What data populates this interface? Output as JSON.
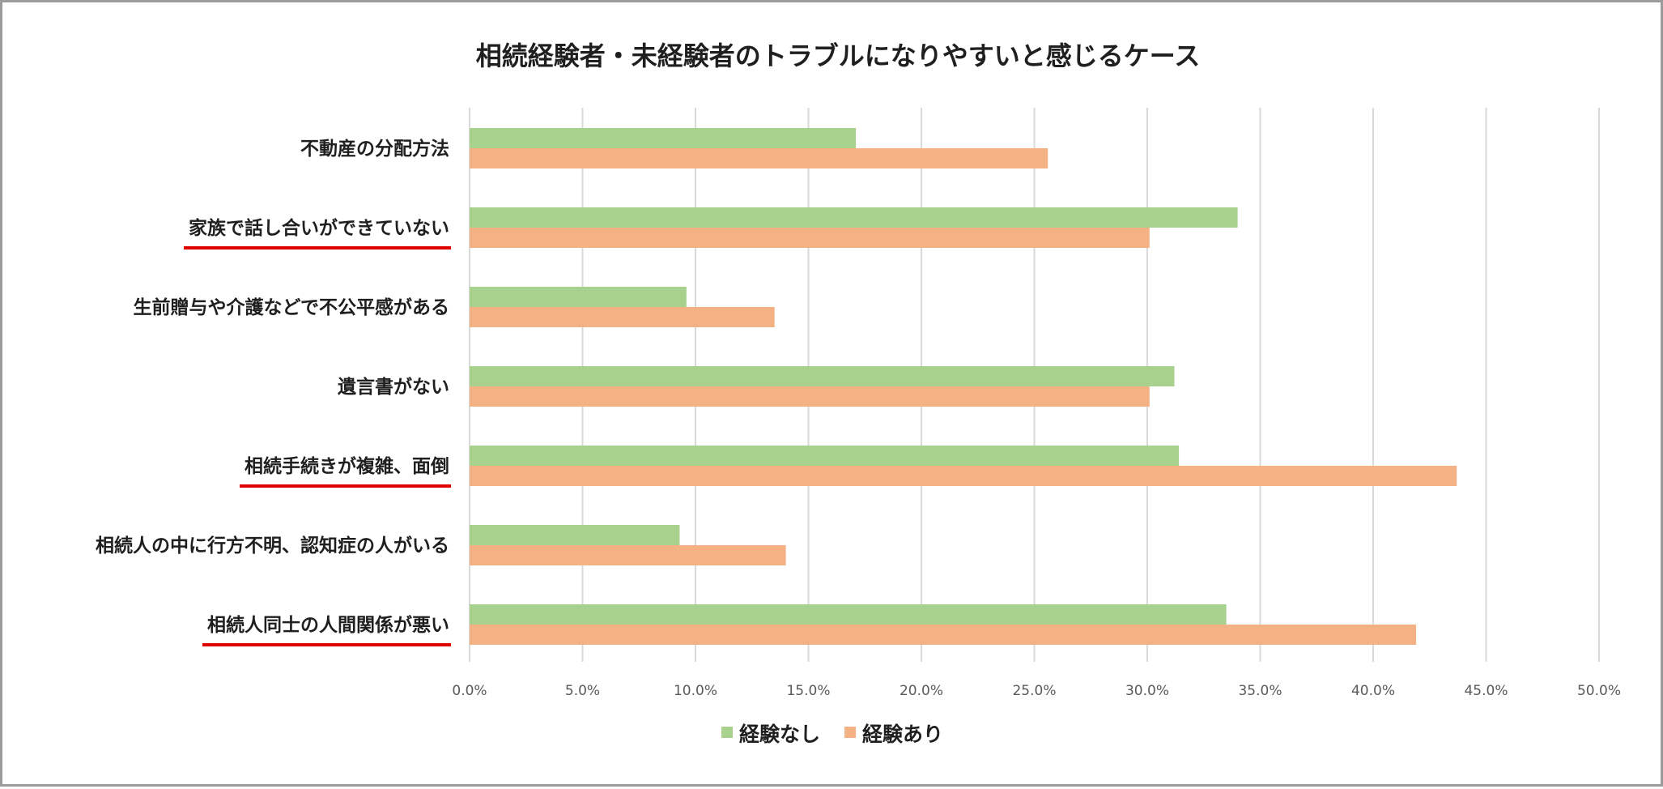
{
  "chart_data": {
    "type": "bar",
    "orientation": "horizontal",
    "title": "相続経験者・未経験者のトラブルになりやすいと感じるケース",
    "categories": [
      "不動産の分配方法",
      "家族で話し合いができていない",
      "生前贈与や介護などで不公平感がある",
      "遺言書がない",
      "相続手続きが複雑、面倒",
      "相続人の中に行方不明、認知症の人がいる",
      "相続人同士の人間関係が悪い"
    ],
    "series": [
      {
        "name": "経験なし",
        "color": "#a9d18e",
        "values": [
          17.1,
          34.0,
          9.6,
          31.2,
          31.4,
          9.3,
          33.5
        ]
      },
      {
        "name": "経験あり",
        "color": "#f4b183",
        "values": [
          25.6,
          30.1,
          13.5,
          30.1,
          43.7,
          14.0,
          41.9
        ]
      }
    ],
    "xlim": [
      0,
      50
    ],
    "xticks": [
      0,
      5,
      10,
      15,
      20,
      25,
      30,
      35,
      40,
      45,
      50
    ],
    "xtick_labels": [
      "0.0%",
      "5.0%",
      "10.0%",
      "15.0%",
      "20.0%",
      "25.0%",
      "30.0%",
      "35.0%",
      "40.0%",
      "45.0%",
      "50.0%"
    ],
    "underlined_categories": [
      1,
      4,
      6
    ],
    "underline_color": "#e00000",
    "grid": true,
    "legend": "bottom"
  }
}
